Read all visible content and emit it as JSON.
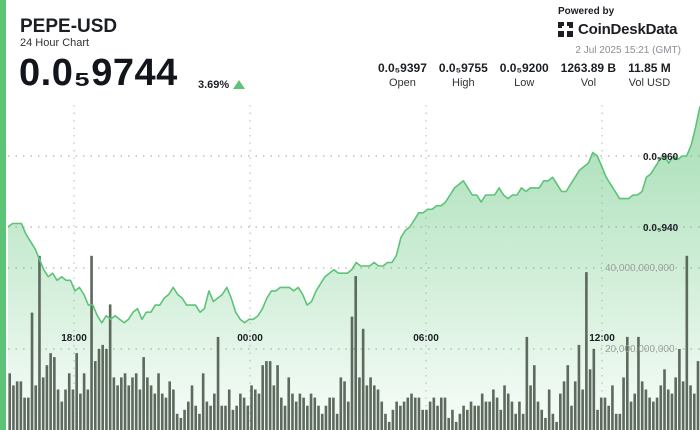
{
  "header": {
    "symbol": "PEPE-USD",
    "subtitle": "24 Hour Chart",
    "price": "0.0₅9744",
    "change": "3.69%",
    "powered_by": "Powered by",
    "brand": "CoinDeskData",
    "timestamp": "2 Jul 2025 15:21 (GMT)"
  },
  "stats": [
    {
      "value": "0.0₅9397",
      "label": "Open"
    },
    {
      "value": "0.0₅9755",
      "label": "High"
    },
    {
      "value": "0.0₅9200",
      "label": "Low"
    },
    {
      "value": "1263.89 B",
      "label": "Vol"
    },
    {
      "value": "11.85 M",
      "label": "Vol USD"
    }
  ],
  "colors": {
    "accent": "#5cc377",
    "price_line": "#5cc377",
    "volume_bar": "#5d6a5d"
  },
  "chart_data": {
    "type": "line",
    "x_ticks": [
      "18:00",
      "00:00",
      "06:00",
      "12:00"
    ],
    "price_axis": {
      "tick_labels": [
        "0.0₅960",
        "0.0₅940"
      ],
      "tick_values": [
        9.6e-06,
        9.4e-06
      ]
    },
    "volume_axis": {
      "tick_labels": [
        "40,000,000,000",
        "20,000,000,000"
      ],
      "tick_values": [
        40000000000,
        20000000000
      ]
    },
    "series": [
      {
        "values": [
          9.4e-06,
          9.41e-06,
          9.41e-06,
          9.41e-06,
          9.38e-06,
          9.36e-06,
          9.34e-06,
          9.31e-06,
          9.28e-06,
          9.26e-06,
          9.27e-06,
          9.25e-06,
          9.26e-06,
          9.25e-06,
          9.25e-06,
          9.22e-06,
          9.23e-06,
          9.21e-06,
          9.18e-06,
          9.18e-06,
          9.15e-06,
          9.13e-06,
          9.15e-06,
          9.14e-06,
          9.15e-06,
          9.14e-06,
          9.13e-06,
          9.14e-06,
          9.16e-06,
          9.17e-06,
          9.14e-06,
          9.16e-06,
          9.16e-06,
          9.18e-06,
          9.18e-06,
          9.2e-06,
          9.21e-06,
          9.23e-06,
          9.21e-06,
          9.2e-06,
          9.18e-06,
          9.18e-06,
          9.18e-06,
          9.16e-06,
          9.17e-06,
          9.22e-06,
          9.19e-06,
          9.2e-06,
          9.21e-06,
          9.23e-06,
          9.2e-06,
          9.16e-06,
          9.14e-06,
          9.13e-06,
          9.14e-06,
          9.14e-06,
          9.15e-06,
          9.17e-06,
          9.2e-06,
          9.22e-06,
          9.22e-06,
          9.23e-06,
          9.23e-06,
          9.23e-06,
          9.22e-06,
          9.23e-06,
          9.21e-06,
          9.18e-06,
          9.19e-06,
          9.22e-06,
          9.24e-06,
          9.26e-06,
          9.27e-06,
          9.28e-06,
          9.27e-06,
          9.27e-06,
          9.27e-06,
          9.28e-06,
          9.3e-06,
          9.29e-06,
          9.29e-06,
          9.29e-06,
          9.3e-06,
          9.29e-06,
          9.29e-06,
          9.3e-06,
          9.3e-06,
          9.32e-06,
          9.37e-06,
          9.39e-06,
          9.4e-06,
          9.42e-06,
          9.44e-06,
          9.44e-06,
          9.45e-06,
          9.45e-06,
          9.46e-06,
          9.46e-06,
          9.47e-06,
          9.49e-06,
          9.51e-06,
          9.52e-06,
          9.53e-06,
          9.51e-06,
          9.49e-06,
          9.49e-06,
          9.47e-06,
          9.49e-06,
          9.49e-06,
          9.49e-06,
          9.51e-06,
          9.49e-06,
          9.48e-06,
          9.49e-06,
          9.49e-06,
          9.51e-06,
          9.5e-06,
          9.51e-06,
          9.51e-06,
          9.51e-06,
          9.53e-06,
          9.53e-06,
          9.54e-06,
          9.52e-06,
          9.5e-06,
          9.5e-06,
          9.52e-06,
          9.54e-06,
          9.56e-06,
          9.57e-06,
          9.58e-06,
          9.61e-06,
          9.6e-06,
          9.57e-06,
          9.54e-06,
          9.52e-06,
          9.5e-06,
          9.48e-06,
          9.48e-06,
          9.48e-06,
          9.49e-06,
          9.49e-06,
          9.5e-06,
          9.54e-06,
          9.55e-06,
          9.57e-06,
          9.59e-06,
          9.6e-06,
          9.58e-06,
          9.6e-06,
          9.59e-06,
          9.6e-06,
          9.6e-06,
          9.63e-06,
          9.68e-06,
          9.74e-06
        ]
      }
    ],
    "volume_values": [
      14,
      11,
      12,
      12,
      8,
      8,
      29,
      11,
      43,
      13,
      16,
      19,
      18,
      10,
      7,
      10,
      14,
      10,
      19,
      9,
      14,
      10,
      43,
      17,
      20,
      21,
      20,
      31,
      13,
      11,
      13,
      14,
      11,
      13,
      14,
      10,
      18,
      13,
      11,
      9,
      14,
      9,
      8,
      12,
      10,
      4,
      3,
      5,
      7,
      11,
      6,
      4,
      14,
      7,
      6,
      9,
      23,
      6,
      6,
      10,
      5,
      6,
      9,
      8,
      6,
      11,
      10,
      9,
      16,
      17,
      17,
      11,
      16,
      8,
      6,
      13,
      9,
      7,
      9,
      8,
      6,
      9,
      8,
      6,
      4,
      6,
      8,
      8,
      4,
      13,
      12,
      7,
      28,
      38,
      13,
      25,
      11,
      13,
      11,
      10,
      7,
      4,
      2,
      5,
      7,
      6,
      7,
      8,
      9,
      8,
      8,
      5,
      5,
      7,
      8,
      6,
      8,
      8,
      3,
      5,
      2,
      4,
      6,
      5,
      7,
      6,
      6,
      9,
      7,
      7,
      10,
      8,
      5,
      11,
      9,
      7,
      4,
      7,
      4,
      23,
      11,
      16,
      7,
      5,
      3,
      10,
      4,
      2,
      9,
      12,
      16,
      6,
      12,
      21,
      10,
      39,
      15,
      20,
      5,
      8,
      8,
      6,
      11,
      4,
      4,
      13,
      23,
      7,
      9,
      23,
      12,
      10,
      8,
      7,
      8,
      11,
      15,
      10,
      9,
      13,
      20,
      12,
      43,
      11,
      9,
      17
    ]
  }
}
